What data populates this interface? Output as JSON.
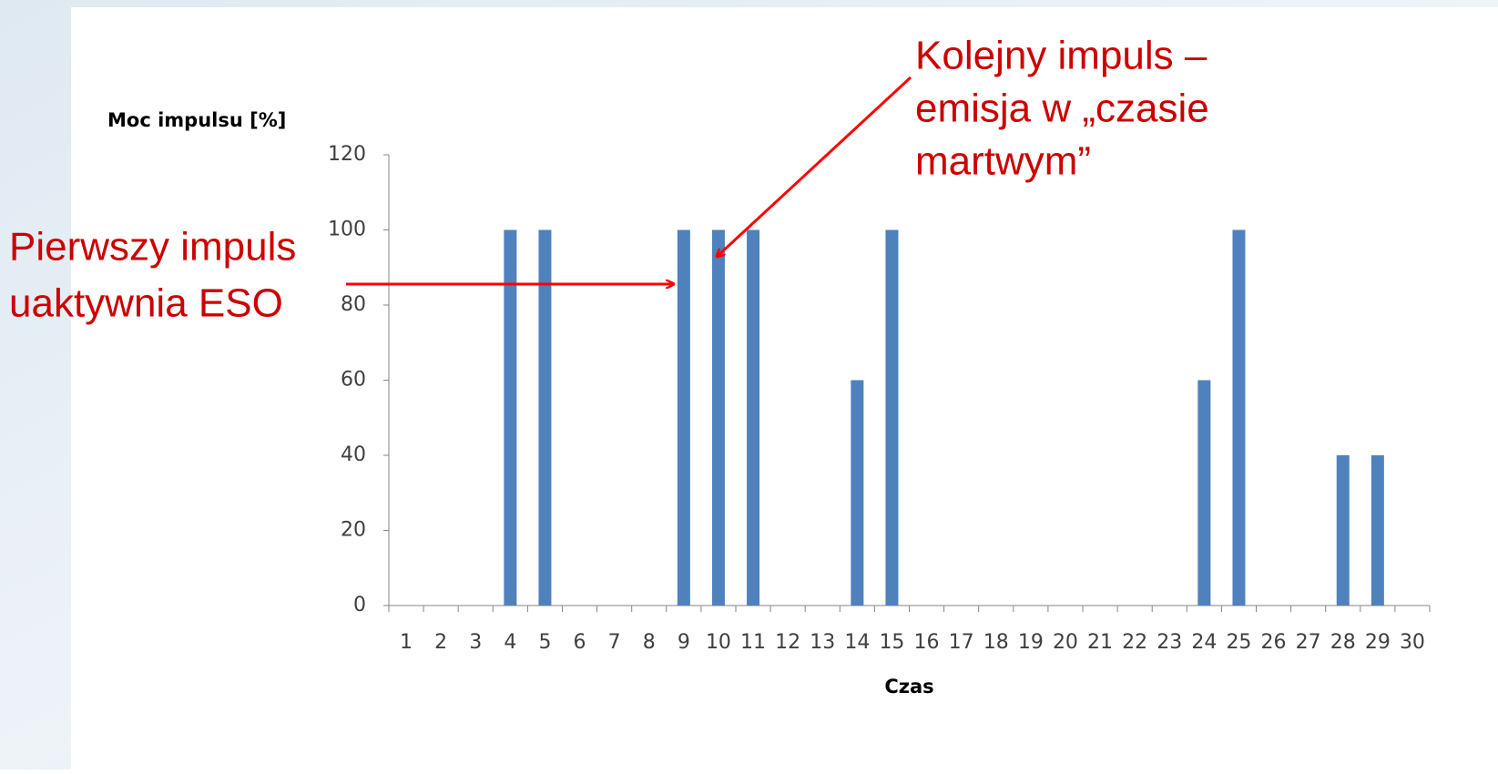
{
  "chart_data": {
    "type": "bar",
    "y_axis_label": "Moc impulsu [%]",
    "x_axis_label": "Czas",
    "categories": [
      "1",
      "2",
      "3",
      "4",
      "5",
      "6",
      "7",
      "8",
      "9",
      "10",
      "11",
      "12",
      "13",
      "14",
      "15",
      "16",
      "17",
      "18",
      "19",
      "20",
      "21",
      "22",
      "23",
      "24",
      "25",
      "26",
      "27",
      "28",
      "29",
      "30"
    ],
    "values": [
      0,
      0,
      0,
      100,
      100,
      0,
      0,
      0,
      100,
      100,
      100,
      0,
      0,
      60,
      100,
      0,
      0,
      0,
      0,
      0,
      0,
      0,
      0,
      60,
      100,
      0,
      0,
      40,
      40,
      0
    ],
    "color": "#4f81bd",
    "ylim": [
      0,
      120
    ],
    "yticks": [
      0,
      20,
      40,
      60,
      80,
      100,
      120
    ],
    "grid": false,
    "annotations": [
      {
        "lines": [
          "Pierwszy impuls",
          "uaktywnia ESO"
        ],
        "color": "#cc0000"
      },
      {
        "lines": [
          "Kolejny impuls –",
          "emisja w „czasie",
          "martwym”"
        ],
        "color": "#cc0000"
      }
    ]
  }
}
